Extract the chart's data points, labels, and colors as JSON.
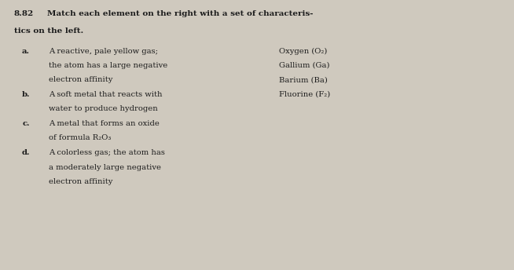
{
  "background_color": "#cfc9be",
  "title_number": "8.82",
  "title_line1": "Match each element on the right with a set of characteris-",
  "title_line2": "tics on the left.",
  "left_items": [
    {
      "label": "a.",
      "lines": [
        "A reactive, pale yellow gas;",
        "the atom has a large negative",
        "electron affinity"
      ]
    },
    {
      "label": "b.",
      "lines": [
        "A soft metal that reacts with",
        "water to produce hydrogen"
      ]
    },
    {
      "label": "c.",
      "lines": [
        "A metal that forms an oxide",
        "of formula R₂O₃"
      ]
    },
    {
      "label": "d.",
      "lines": [
        "A colorless gas; the atom has",
        "a moderately large negative",
        "electron affinity"
      ]
    }
  ],
  "right_items": [
    "Oxygen (O₂)",
    "Gallium (Ga)",
    "Barium (Ba)",
    "Fluorine (F₂)"
  ],
  "font_size_title": 7.5,
  "font_size_body": 7.2,
  "text_color": "#1c1c1c"
}
